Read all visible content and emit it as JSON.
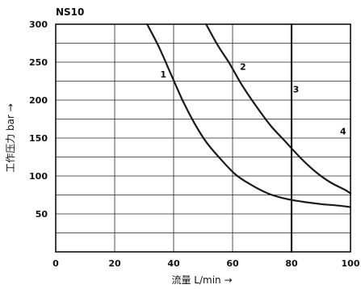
{
  "chart_data": {
    "type": "line",
    "title": "NS10",
    "xlabel": "流量 L/min →",
    "ylabel": "工作压力 bar →",
    "xlim": [
      0,
      100
    ],
    "ylim": [
      0,
      300
    ],
    "x_ticks": [
      0,
      20,
      40,
      60,
      80,
      100
    ],
    "y_tick_labels": [
      50,
      100,
      150,
      200,
      250,
      300
    ],
    "grid": true,
    "series": [
      {
        "name": "1",
        "x": [
          31,
          35,
          39,
          43,
          47,
          51,
          56,
          61,
          66,
          72,
          78,
          84,
          90,
          96,
          100
        ],
        "y": [
          300,
          270,
          235,
          200,
          170,
          145,
          122,
          102,
          89,
          77,
          70,
          66,
          63,
          61,
          59
        ]
      },
      {
        "name": "2",
        "x": [
          51,
          55,
          59,
          63,
          68,
          73,
          78,
          83,
          88,
          93,
          98,
          100
        ],
        "y": [
          300,
          272,
          248,
          221,
          192,
          166,
          145,
          124,
          106,
          92,
          82,
          77
        ]
      },
      {
        "name": "3",
        "x": [
          80,
          80
        ],
        "y": [
          0,
          300
        ]
      }
    ],
    "annotations": [
      {
        "text": "1",
        "x": 36.5,
        "y": 230
      },
      {
        "text": "2",
        "x": 63.5,
        "y": 240
      },
      {
        "text": "3",
        "x": 81.5,
        "y": 210
      },
      {
        "text": "4",
        "x": 97.5,
        "y": 155
      }
    ]
  }
}
